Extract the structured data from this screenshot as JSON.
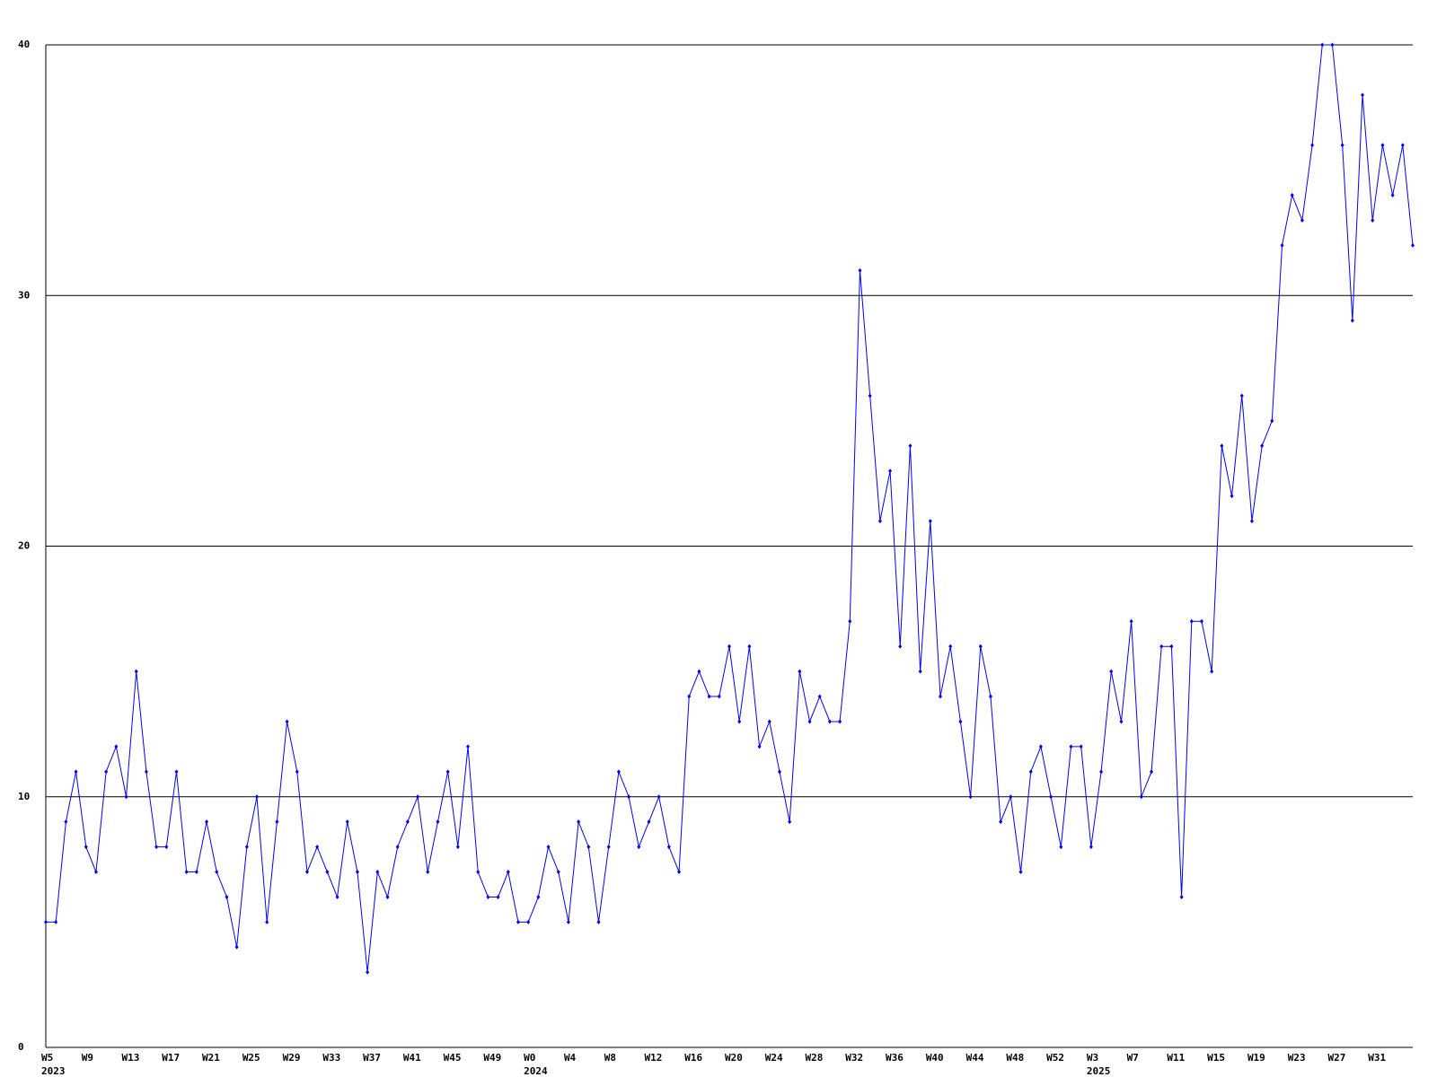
{
  "chart_data": {
    "type": "line",
    "categories": [
      "W5",
      null,
      null,
      null,
      "W9",
      null,
      null,
      null,
      "W13",
      null,
      null,
      null,
      "W17",
      null,
      null,
      null,
      "W21",
      null,
      null,
      null,
      "W25",
      null,
      null,
      null,
      "W29",
      null,
      null,
      null,
      "W33",
      null,
      null,
      null,
      "W37",
      null,
      null,
      null,
      "W41",
      null,
      null,
      null,
      "W45",
      null,
      null,
      null,
      "W49",
      null,
      null,
      null,
      "W0",
      null,
      null,
      null,
      "W4",
      null,
      null,
      null,
      "W8",
      null,
      null,
      null,
      "W12",
      null,
      null,
      null,
      "W16",
      null,
      null,
      null,
      "W20",
      null,
      null,
      null,
      "W24",
      null,
      null,
      null,
      "W28",
      null,
      null,
      null,
      "W32",
      null,
      null,
      null,
      "W36",
      null,
      null,
      null,
      "W40",
      null,
      null,
      null,
      "W44",
      null,
      null,
      null,
      "W48",
      null,
      null,
      null,
      "W52",
      null,
      null,
      null,
      "W3",
      null,
      null,
      null,
      "W7",
      null,
      null,
      null,
      "W11",
      null,
      null,
      null,
      "W15",
      null,
      null,
      null,
      "W19",
      null,
      null,
      null,
      "W23",
      null,
      null,
      null,
      "W27",
      null,
      null,
      null,
      "W31",
      null,
      null,
      null,
      null
    ],
    "year_categories": [
      "2023",
      null,
      null,
      null,
      null,
      null,
      null,
      null,
      null,
      null,
      null,
      null,
      null,
      null,
      null,
      null,
      null,
      null,
      null,
      null,
      null,
      null,
      null,
      null,
      null,
      null,
      null,
      null,
      null,
      null,
      null,
      null,
      null,
      null,
      null,
      null,
      null,
      null,
      null,
      null,
      null,
      null,
      null,
      null,
      null,
      null,
      null,
      null,
      "2024",
      null,
      null,
      null,
      null,
      null,
      null,
      null,
      null,
      null,
      null,
      null,
      null,
      null,
      null,
      null,
      null,
      null,
      null,
      null,
      null,
      null,
      null,
      null,
      null,
      null,
      null,
      null,
      null,
      null,
      null,
      null,
      null,
      null,
      null,
      null,
      null,
      null,
      null,
      null,
      null,
      null,
      null,
      null,
      null,
      null,
      null,
      null,
      null,
      null,
      null,
      null,
      null,
      null,
      null,
      null,
      "2025",
      null,
      null,
      null,
      null,
      null,
      null,
      null,
      null,
      null,
      null,
      null,
      null,
      null,
      null,
      null,
      null,
      null,
      null,
      null,
      null,
      null,
      null,
      null,
      null,
      null,
      null,
      null,
      null,
      null,
      null,
      null,
      null
    ],
    "series": [
      {
        "color": "#0000ff",
        "values": [
          5,
          5,
          9,
          11,
          8,
          7,
          11,
          12,
          10,
          15,
          11,
          8,
          8,
          11,
          7,
          7,
          9,
          7,
          6,
          4,
          8,
          10,
          5,
          9,
          13,
          11,
          7,
          8,
          7,
          6,
          9,
          7,
          3,
          7,
          6,
          8,
          9,
          10,
          7,
          9,
          11,
          8,
          12,
          7,
          6,
          6,
          7,
          5,
          5,
          6,
          8,
          7,
          5,
          9,
          8,
          5,
          8,
          11,
          10,
          8,
          9,
          10,
          8,
          7,
          14,
          15,
          14,
          14,
          16,
          13,
          16,
          12,
          13,
          11,
          9,
          15,
          13,
          14,
          13,
          13,
          17,
          31,
          26,
          21,
          23,
          16,
          24,
          15,
          21,
          14,
          16,
          13,
          10,
          16,
          14,
          9,
          10,
          7,
          11,
          12,
          10,
          8,
          12,
          12,
          8,
          11,
          15,
          13,
          17,
          10,
          11,
          16,
          16,
          6,
          17,
          17,
          15,
          24,
          22,
          26,
          21,
          24,
          25,
          32,
          34,
          33,
          36,
          40,
          40,
          36,
          29,
          38,
          33,
          36,
          34,
          36,
          32
        ]
      }
    ],
    "ylim": [
      0,
      40
    ],
    "yticks": [
      0,
      10,
      20,
      30,
      40
    ],
    "grid": true
  }
}
